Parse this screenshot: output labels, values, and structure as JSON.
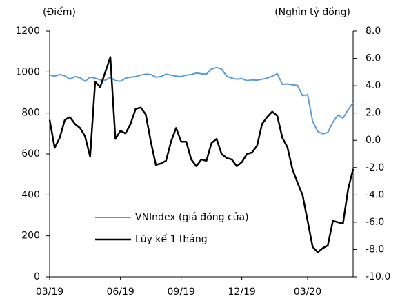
{
  "chart_data": {
    "type": "line",
    "y_axis_label": "(Điểm)",
    "y2_axis_label": "(Nghìn tỷ đồng)",
    "x": [
      0,
      1,
      2,
      3,
      4,
      5,
      6,
      7,
      8,
      9,
      10,
      11,
      12,
      13,
      14,
      15,
      16,
      17,
      18,
      19,
      20,
      21,
      22,
      23,
      24,
      25,
      26,
      27,
      28,
      29,
      30,
      31,
      32,
      33,
      34,
      35,
      36,
      37,
      38,
      39,
      40,
      41,
      42,
      43,
      44,
      45,
      46,
      47,
      48,
      49,
      50,
      51,
      52,
      53,
      54,
      55,
      56,
      57,
      58,
      59,
      60
    ],
    "xlim": [
      0,
      60
    ],
    "xticks": [
      {
        "value": 0,
        "label": "03/19"
      },
      {
        "value": 14,
        "label": "06/19"
      },
      {
        "value": 26,
        "label": "09/19"
      },
      {
        "value": 38,
        "label": "12/19"
      },
      {
        "value": 51,
        "label": "03/20"
      }
    ],
    "ylim": [
      0,
      1200
    ],
    "yticks": [
      0,
      200,
      400,
      600,
      800,
      1000,
      1200
    ],
    "y2lim": [
      -10,
      8
    ],
    "y2ticks": [
      {
        "value": -10,
        "label": "-10.0"
      },
      {
        "value": -8,
        "label": "-8.0"
      },
      {
        "value": -6,
        "label": "-6.0"
      },
      {
        "value": -4,
        "label": "-4.0"
      },
      {
        "value": -2,
        "label": "-2.0"
      },
      {
        "value": 0,
        "label": "0.0"
      },
      {
        "value": 2,
        "label": "2.0"
      },
      {
        "value": 4,
        "label": "4.0"
      },
      {
        "value": 6,
        "label": "6.0"
      },
      {
        "value": 8,
        "label": "8.0"
      }
    ],
    "grid": false,
    "series": [
      {
        "name": "VNIndex (giá đóng cửa)",
        "color": "#5b9bd5",
        "axis": "y",
        "values": [
          985,
          980,
          988,
          982,
          965,
          978,
          972,
          955,
          975,
          970,
          962,
          960,
          975,
          958,
          955,
          970,
          975,
          978,
          985,
          990,
          988,
          975,
          978,
          990,
          985,
          980,
          978,
          985,
          988,
          995,
          992,
          990,
          1015,
          1022,
          1015,
          980,
          970,
          965,
          968,
          958,
          962,
          960,
          965,
          970,
          980,
          992,
          940,
          942,
          938,
          935,
          885,
          890,
          760,
          710,
          698,
          705,
          755,
          790,
          775,
          815,
          850
        ]
      },
      {
        "name": "Lũy kế 1 tháng",
        "color": "#000000",
        "axis": "y2",
        "values": [
          1.5,
          -0.55,
          0.2,
          1.5,
          1.7,
          1.2,
          0.9,
          0.3,
          -1.2,
          4.3,
          3.9,
          5.0,
          6.1,
          0.1,
          0.7,
          0.5,
          1.2,
          2.3,
          2.4,
          1.9,
          -0.1,
          -1.8,
          -1.7,
          -1.5,
          -0.1,
          0.9,
          -0.1,
          -0.1,
          -1.4,
          -1.9,
          -1.4,
          -1.5,
          -0.2,
          0.1,
          -1.0,
          -1.3,
          -1.4,
          -1.9,
          -1.6,
          -1.0,
          -0.9,
          -0.4,
          1.2,
          1.7,
          2.1,
          1.8,
          0.2,
          -0.5,
          -2.1,
          -3.1,
          -4.0,
          -5.9,
          -7.8,
          -8.2,
          -7.9,
          -7.7,
          -5.9,
          -6.0,
          -6.1,
          -3.6,
          -2.1
        ]
      }
    ]
  }
}
